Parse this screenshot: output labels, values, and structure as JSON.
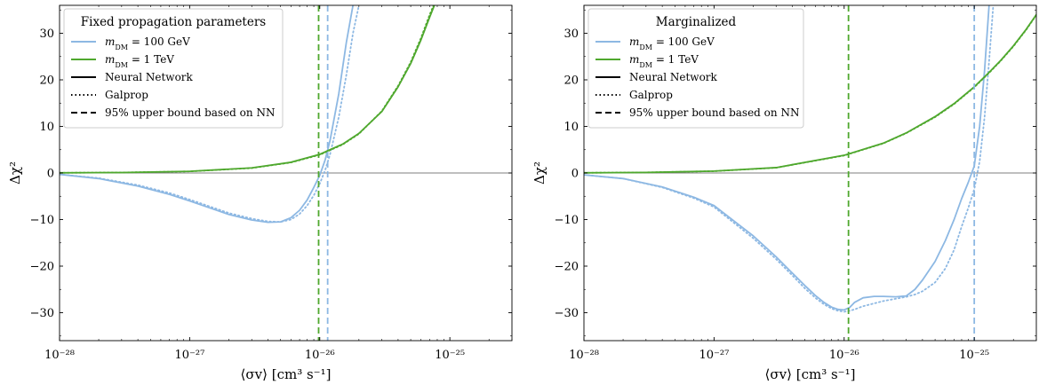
{
  "colors": {
    "blue": "#8db8e3",
    "green": "#4fa82e",
    "black": "#000000",
    "zero_line": "#555555"
  },
  "chart_data": [
    {
      "type": "line",
      "xscale": "log",
      "xlim": [
        1e-28,
        3e-25
      ],
      "ylim": [
        -36,
        36
      ],
      "xlabel": "⟨σv⟩ [cm³ s⁻¹]",
      "ylabel": "Δχ²",
      "xticks": [
        {
          "value": 1e-28,
          "label": "10⁻²⁸"
        },
        {
          "value": 1e-27,
          "label": "10⁻²⁷"
        },
        {
          "value": 1e-26,
          "label": "10⁻²⁶"
        },
        {
          "value": 1e-25,
          "label": "10⁻²⁵"
        }
      ],
      "yticks": [
        {
          "value": -30,
          "label": "−30"
        },
        {
          "value": -20,
          "label": "−20"
        },
        {
          "value": -10,
          "label": "−10"
        },
        {
          "value": 0,
          "label": "0"
        },
        {
          "value": 10,
          "label": "10"
        },
        {
          "value": 20,
          "label": "20"
        },
        {
          "value": 30,
          "label": "30"
        }
      ],
      "legend": {
        "position": "top-left",
        "title": "Fixed propagation parameters",
        "entries": [
          {
            "label": "m_DM = 100 GeV",
            "color": "blue",
            "style": "solid"
          },
          {
            "label": "m_DM = 1 TeV",
            "color": "green",
            "style": "solid"
          },
          {
            "label": "Neural Network",
            "color": "black",
            "style": "solid"
          },
          {
            "label": "Galprop",
            "color": "black",
            "style": "dotted"
          },
          {
            "label": "95% upper bound based on NN",
            "color": "black",
            "style": "dashed"
          }
        ]
      },
      "series": [
        {
          "name": "m_DM = 100 GeV",
          "method": "Neural Network",
          "color": "blue",
          "style": "solid",
          "x": [
            1e-28,
            2e-28,
            4e-28,
            7e-28,
            1e-27,
            1.5e-27,
            2e-27,
            3e-27,
            4e-27,
            5e-27,
            6e-27,
            7e-27,
            8e-27,
            9e-27,
            1e-26,
            1.1e-26,
            1.2e-26,
            1.4e-26,
            1.6e-26,
            1.8e-26
          ],
          "y": [
            -0.3,
            -1.2,
            -2.8,
            -4.6,
            -6.0,
            -7.7,
            -8.9,
            -10.1,
            -10.6,
            -10.5,
            -9.6,
            -8.0,
            -5.8,
            -3.1,
            -0.5,
            2.8,
            7.0,
            17.0,
            28.0,
            36.0
          ]
        },
        {
          "name": "m_DM = 100 GeV",
          "method": "Galprop",
          "color": "blue",
          "style": "dotted",
          "x": [
            1e-28,
            2e-28,
            4e-28,
            7e-28,
            1e-27,
            1.5e-27,
            2e-27,
            3e-27,
            4e-27,
            5e-27,
            6e-27,
            7e-27,
            8e-27,
            9e-27,
            1e-26,
            1.1e-26,
            1.2e-26,
            1.4e-26,
            1.6e-26,
            1.8e-26,
            2e-26
          ],
          "y": [
            -0.3,
            -1.1,
            -2.6,
            -4.3,
            -5.7,
            -7.4,
            -8.6,
            -9.8,
            -10.4,
            -10.5,
            -10.0,
            -8.8,
            -7.0,
            -4.8,
            -2.3,
            0.6,
            4.0,
            12.0,
            21.0,
            30.0,
            36.0
          ]
        },
        {
          "name": "m_DM = 1 TeV",
          "method": "Neural Network",
          "color": "green",
          "style": "solid",
          "x": [
            1e-28,
            3e-28,
            1e-27,
            3e-27,
            6e-27,
            1e-26,
            1.5e-26,
            2e-26,
            3e-26,
            4e-26,
            5e-26,
            6e-26,
            7e-26,
            7.6e-26
          ],
          "y": [
            0.04,
            0.1,
            0.35,
            1.1,
            2.3,
            4.0,
            6.2,
            8.5,
            13.2,
            18.5,
            23.5,
            28.6,
            33.5,
            36.0
          ]
        },
        {
          "name": "m_DM = 1 TeV",
          "method": "Galprop",
          "color": "green",
          "style": "dotted",
          "x": [
            1e-28,
            3e-28,
            1e-27,
            3e-27,
            6e-27,
            1e-26,
            1.5e-26,
            2e-26,
            3e-26,
            4e-26,
            5e-26,
            6e-26,
            7e-26,
            7.5e-26
          ],
          "y": [
            0.04,
            0.1,
            0.34,
            1.05,
            2.25,
            3.9,
            6.1,
            8.4,
            13.3,
            18.7,
            23.8,
            29.0,
            34.0,
            36.0
          ]
        }
      ],
      "vlines": [
        {
          "x": 9.8e-27,
          "color": "green",
          "style": "dashed"
        },
        {
          "x": 1.15e-26,
          "color": "blue",
          "style": "dashed"
        }
      ]
    },
    {
      "type": "line",
      "xscale": "log",
      "xlim": [
        1e-28,
        3e-25
      ],
      "ylim": [
        -36,
        36
      ],
      "xlabel": "⟨σv⟩ [cm³ s⁻¹]",
      "ylabel": "Δχ²",
      "xticks": [
        {
          "value": 1e-28,
          "label": "10⁻²⁸"
        },
        {
          "value": 1e-27,
          "label": "10⁻²⁷"
        },
        {
          "value": 1e-26,
          "label": "10⁻²⁶"
        },
        {
          "value": 1e-25,
          "label": "10⁻²⁵"
        }
      ],
      "yticks": [
        {
          "value": -30,
          "label": "−30"
        },
        {
          "value": -20,
          "label": "−20"
        },
        {
          "value": -10,
          "label": "−10"
        },
        {
          "value": 0,
          "label": "0"
        },
        {
          "value": 10,
          "label": "10"
        },
        {
          "value": 20,
          "label": "20"
        },
        {
          "value": 30,
          "label": "30"
        }
      ],
      "legend": {
        "position": "top-left",
        "title": "Marginalized",
        "entries": [
          {
            "label": "m_DM = 100 GeV",
            "color": "blue",
            "style": "solid"
          },
          {
            "label": "m_DM = 1 TeV",
            "color": "green",
            "style": "solid"
          },
          {
            "label": "Neural Network",
            "color": "black",
            "style": "solid"
          },
          {
            "label": "Galprop",
            "color": "black",
            "style": "dotted"
          },
          {
            "label": "95% upper bound based on NN",
            "color": "black",
            "style": "dashed"
          }
        ]
      },
      "series": [
        {
          "name": "m_DM = 100 GeV",
          "method": "Neural Network",
          "color": "blue",
          "style": "solid",
          "x": [
            1e-28,
            2e-28,
            4e-28,
            7e-28,
            1e-27,
            2e-27,
            3e-27,
            4e-27,
            5e-27,
            6e-27,
            7e-27,
            8e-27,
            9e-27,
            1e-26,
            1.1e-26,
            1.2e-26,
            1.4e-26,
            1.7e-26,
            2e-26,
            2.5e-26,
            3e-26,
            3.5e-26,
            4e-26,
            5e-26,
            6e-26,
            7e-26,
            8e-26,
            9e-26,
            1e-25,
            1.1e-25,
            1.2e-25,
            1.3e-25
          ],
          "y": [
            -0.4,
            -1.2,
            -3.0,
            -5.2,
            -7.0,
            -13.5,
            -18.0,
            -21.5,
            -24.2,
            -26.3,
            -27.8,
            -28.8,
            -29.3,
            -29.4,
            -28.9,
            -27.8,
            -26.8,
            -26.5,
            -26.5,
            -26.6,
            -26.4,
            -25.0,
            -23.0,
            -19.0,
            -14.5,
            -10.0,
            -5.5,
            -2.0,
            1.5,
            10.0,
            22.0,
            36.0
          ]
        },
        {
          "name": "m_DM = 100 GeV",
          "method": "Galprop",
          "color": "blue",
          "style": "dotted",
          "x": [
            1e-28,
            2e-28,
            4e-28,
            7e-28,
            1e-27,
            2e-27,
            3e-27,
            4e-27,
            5e-27,
            6e-27,
            7e-27,
            8e-27,
            9e-27,
            1e-26,
            1.1e-26,
            1.2e-26,
            1.4e-26,
            1.7e-26,
            2e-26,
            2.5e-26,
            3e-26,
            3.5e-26,
            4e-26,
            5e-26,
            6e-26,
            7e-26,
            8e-26,
            9e-26,
            1e-25,
            1.1e-25,
            1.2e-25,
            1.3e-25,
            1.4e-25
          ],
          "y": [
            -0.4,
            -1.2,
            -3.1,
            -5.4,
            -7.3,
            -14.0,
            -18.5,
            -22.0,
            -24.8,
            -26.8,
            -28.2,
            -29.1,
            -29.6,
            -29.8,
            -29.6,
            -29.3,
            -28.6,
            -28.0,
            -27.5,
            -27.0,
            -26.6,
            -26.1,
            -25.4,
            -23.5,
            -20.5,
            -16.5,
            -11.5,
            -7.5,
            -3.5,
            2.5,
            12.0,
            24.0,
            36.0
          ]
        },
        {
          "name": "m_DM = 1 TeV",
          "method": "Neural Network",
          "color": "green",
          "style": "solid",
          "x": [
            1e-28,
            3e-28,
            1e-27,
            3e-27,
            1e-26,
            2e-26,
            3e-26,
            5e-26,
            7e-26,
            1e-25,
            1.3e-25,
            1.6e-25,
            2e-25,
            2.5e-25,
            3e-25
          ],
          "y": [
            0.04,
            0.12,
            0.4,
            1.15,
            3.8,
            6.4,
            8.6,
            12.1,
            14.9,
            18.5,
            21.6,
            24.2,
            27.3,
            30.8,
            34.0
          ]
        },
        {
          "name": "m_DM = 1 TeV",
          "method": "Galprop",
          "color": "green",
          "style": "dotted",
          "x": [
            1e-28,
            3e-28,
            1e-27,
            3e-27,
            1e-26,
            2e-26,
            3e-26,
            5e-26,
            7e-26,
            1e-25,
            1.3e-25,
            1.6e-25,
            2e-25,
            2.5e-25,
            3e-25
          ],
          "y": [
            0.04,
            0.12,
            0.39,
            1.13,
            3.75,
            6.35,
            8.55,
            12.0,
            14.8,
            18.4,
            21.5,
            24.1,
            27.2,
            30.7,
            33.9
          ]
        }
      ],
      "vlines": [
        {
          "x": 1.08e-26,
          "color": "green",
          "style": "dashed"
        },
        {
          "x": 1e-25,
          "color": "blue",
          "style": "dashed"
        }
      ]
    }
  ]
}
